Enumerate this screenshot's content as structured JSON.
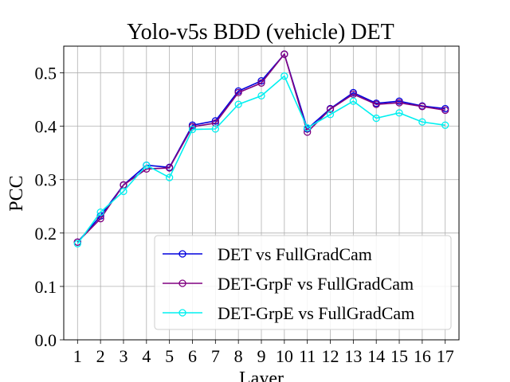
{
  "chart_data": {
    "type": "line",
    "title": "Yolo-v5s BDD (vehicle) DET",
    "xlabel": "Layer",
    "ylabel": "PCC",
    "x": [
      1,
      2,
      3,
      4,
      5,
      6,
      7,
      8,
      9,
      10,
      11,
      12,
      13,
      14,
      15,
      16,
      17
    ],
    "xticks": [
      "1",
      "2",
      "3",
      "4",
      "5",
      "6",
      "7",
      "8",
      "9",
      "10",
      "11",
      "12",
      "13",
      "14",
      "15",
      "16",
      "17"
    ],
    "yticks": [
      "0.0",
      "0.1",
      "0.2",
      "0.3",
      "0.4",
      "0.5"
    ],
    "ylim": [
      0.0,
      0.55
    ],
    "xlim": [
      0.4,
      17.6
    ],
    "grid": true,
    "legend_position": "lower-right",
    "series": [
      {
        "name": "DET vs FullGradCam",
        "color": "#0000dd",
        "values": [
          0.183,
          0.232,
          0.29,
          0.327,
          0.323,
          0.402,
          0.41,
          0.466,
          0.485,
          0.535,
          0.395,
          0.433,
          0.463,
          0.443,
          0.447,
          0.438,
          0.433
        ]
      },
      {
        "name": "DET-GrpF vs FullGradCam",
        "color": "#800080",
        "values": [
          0.183,
          0.227,
          0.29,
          0.32,
          0.322,
          0.399,
          0.406,
          0.463,
          0.481,
          0.535,
          0.389,
          0.432,
          0.46,
          0.441,
          0.444,
          0.437,
          0.43
        ]
      },
      {
        "name": "DET-GrpE vs FullGradCam",
        "color": "#00f0f0",
        "values": [
          0.18,
          0.239,
          0.278,
          0.327,
          0.304,
          0.394,
          0.395,
          0.441,
          0.457,
          0.494,
          0.397,
          0.422,
          0.447,
          0.415,
          0.425,
          0.408,
          0.402
        ]
      }
    ]
  }
}
